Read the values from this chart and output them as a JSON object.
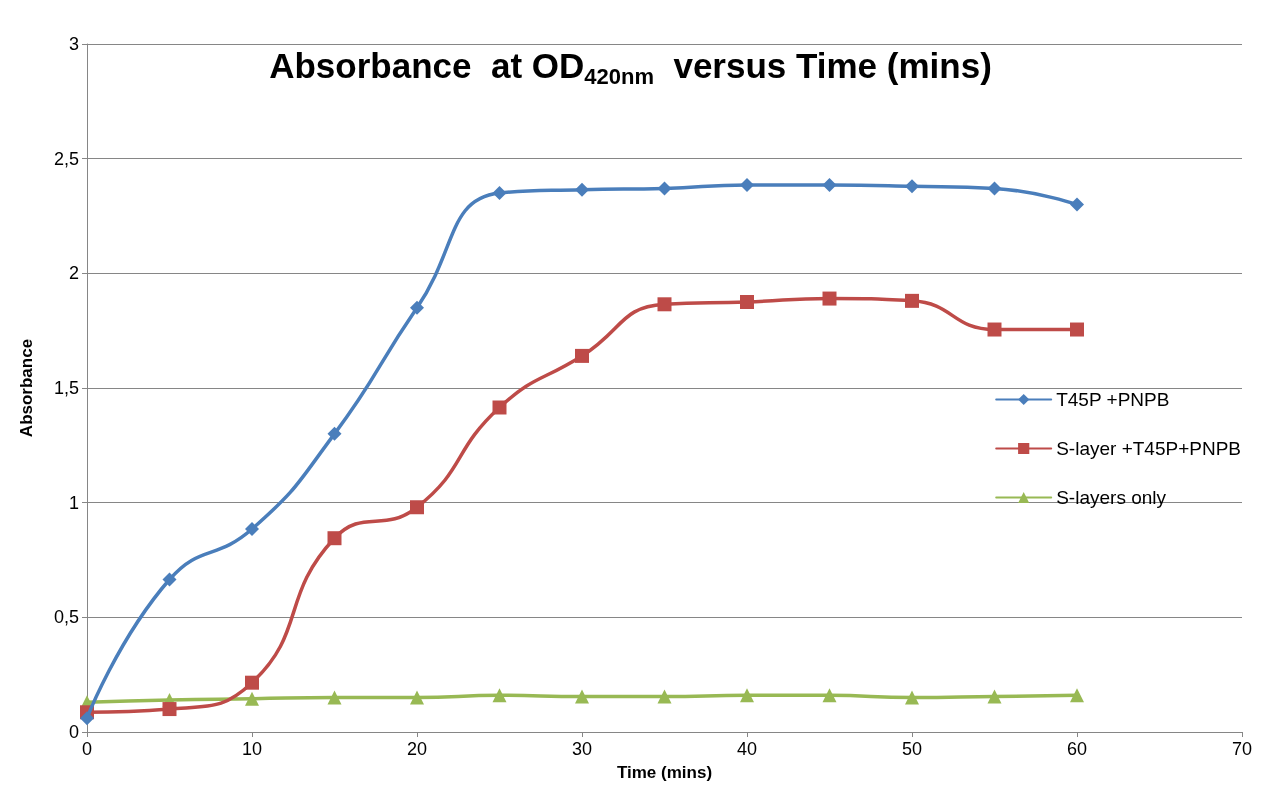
{
  "chart_data": {
    "type": "line",
    "title": "Absorbance  at OD$_{420nm}$  versus Time (mins)",
    "xlabel": "Time (mins)",
    "ylabel": "Absorbance",
    "x": [
      0,
      5,
      10,
      15,
      20,
      25,
      30,
      35,
      40,
      45,
      50,
      55,
      60
    ],
    "series": [
      {
        "name": "T45P +PNPB",
        "color": "#4a7ebb",
        "marker": "diamond",
        "values": [
          0.06,
          0.665,
          0.885,
          1.3,
          1.85,
          2.35,
          2.365,
          2.37,
          2.385,
          2.385,
          2.38,
          2.37,
          2.3
        ]
      },
      {
        "name": "S-layer +T45P+PNPB",
        "color": "#be4b48",
        "marker": "square",
        "values": [
          0.086,
          0.1,
          0.215,
          0.845,
          0.98,
          1.415,
          1.64,
          1.865,
          1.875,
          1.89,
          1.88,
          1.755,
          1.755
        ]
      },
      {
        "name": "S-layers only",
        "color": "#98b954",
        "marker": "triangle",
        "values": [
          0.13,
          0.14,
          0.145,
          0.15,
          0.15,
          0.16,
          0.155,
          0.155,
          0.16,
          0.16,
          0.15,
          0.155,
          0.16
        ]
      }
    ],
    "xlim": [
      0,
      70
    ],
    "xticks": [
      0,
      10,
      20,
      30,
      40,
      50,
      60,
      70
    ],
    "ylim": [
      0,
      3
    ],
    "yticks": [
      0,
      {
        "value": 0.5,
        "label": "0,5"
      },
      1,
      {
        "value": 1.5,
        "label": "1,5"
      },
      2,
      {
        "value": 2.5,
        "label": "2,5"
      },
      3
    ],
    "grid": "y",
    "legend": "right",
    "line_style": "solid"
  }
}
